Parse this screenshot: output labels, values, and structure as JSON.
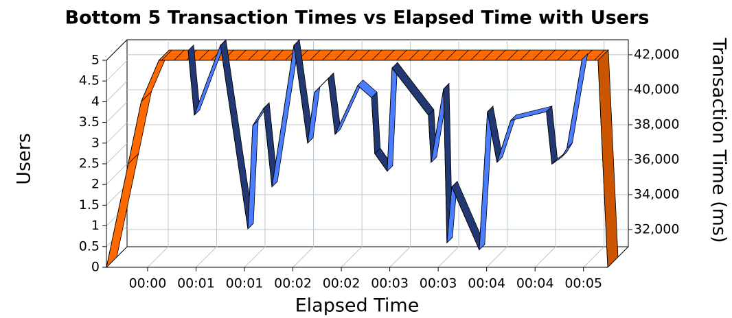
{
  "chart_data": {
    "type": "line3d",
    "title": "Bottom 5 Transaction Times vs Elapsed Time with Users",
    "xlabel": "Elapsed Time",
    "ylabel": "Users",
    "y2label": "Transaction Time (ms)",
    "xlim": [
      4.5,
      315
    ],
    "xticks": [
      {
        "value": 30,
        "label": "00:00"
      },
      {
        "value": 60,
        "label": "00:01"
      },
      {
        "value": 90,
        "label": "00:01"
      },
      {
        "value": 120,
        "label": "00:02"
      },
      {
        "value": 150,
        "label": "00:02"
      },
      {
        "value": 180,
        "label": "00:03"
      },
      {
        "value": 210,
        "label": "00:03"
      },
      {
        "value": 240,
        "label": "00:04"
      },
      {
        "value": 270,
        "label": "00:04"
      },
      {
        "value": 300,
        "label": "00:05"
      }
    ],
    "ylim": [
      0,
      5
    ],
    "yticks": [
      0,
      0.5,
      1,
      1.5,
      2,
      2.5,
      3,
      3.5,
      4,
      4.5,
      5
    ],
    "y2lim": [
      31020,
      42860
    ],
    "y2ticks": [
      {
        "value": 32000,
        "label": "32,000"
      },
      {
        "value": 34000,
        "label": "34,000"
      },
      {
        "value": 36000,
        "label": "36,000"
      },
      {
        "value": 38000,
        "label": "38,000"
      },
      {
        "value": 40000,
        "label": "40,000"
      },
      {
        "value": 42000,
        "label": "42,000"
      }
    ],
    "grid": true,
    "series": [
      {
        "color": "#ff6a00",
        "axis": "y",
        "x": [
          4.5,
          18,
          26,
          37,
          309,
          315
        ],
        "values": [
          0,
          2.5,
          4,
          5,
          5,
          0
        ]
      },
      {
        "color": "#4a7dff",
        "axis": "y2",
        "x": [
          53.4,
          57.2,
          73.4,
          90.4,
          93.4,
          100.2,
          105.3,
          118.9,
          127.4,
          131.6,
          140.1,
          144.4,
          158.4,
          167,
          169,
          176.7,
          179.7,
          202.2,
          203.9,
          211.6,
          213.7,
          216.7,
          233.7,
          238.8,
          244.7,
          253.2,
          275.3,
          278.7,
          284.7,
          288,
          297.4
        ],
        "values": [
          42400,
          38700,
          42700,
          32200,
          38100,
          39100,
          34600,
          42700,
          37100,
          40000,
          40800,
          37600,
          40400,
          39700,
          36500,
          35500,
          41400,
          38700,
          36000,
          40200,
          31400,
          34600,
          31000,
          38900,
          36000,
          38400,
          38900,
          35900,
          36300,
          36800,
          41900
        ]
      }
    ]
  }
}
